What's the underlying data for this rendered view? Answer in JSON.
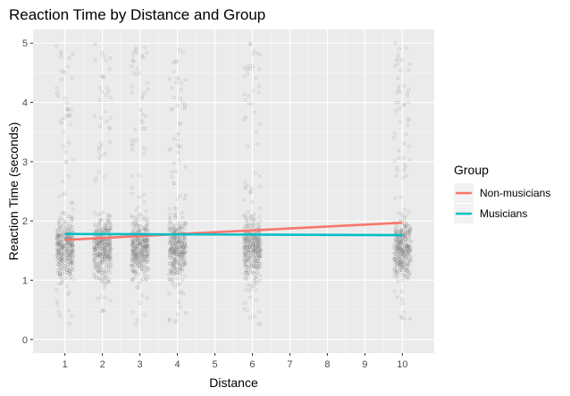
{
  "chart_data": {
    "type": "scatter",
    "title": "Reaction Time by Distance and Group",
    "xlabel": "Distance",
    "ylabel": "Reaction Time (seconds)",
    "xlim": [
      0.15,
      10.85
    ],
    "ylim": [
      -0.23,
      5.23
    ],
    "x_ticks": [
      1,
      2,
      3,
      4,
      5,
      6,
      7,
      8,
      9,
      10
    ],
    "y_ticks": [
      0,
      1,
      2,
      3,
      4,
      5
    ],
    "grid": true,
    "legend": {
      "title": "Group",
      "position": "right"
    },
    "points": {
      "description_free": true,
      "distances": [
        1,
        2,
        3,
        4,
        6,
        10
      ],
      "count_per_distance": 380,
      "jitter_width": 0.45,
      "rt_center": 1.55,
      "rt_range": [
        0.25,
        5.0
      ],
      "color": "#7f7f7f"
    },
    "series": [
      {
        "name": "Non-musicians",
        "color": "#F8766D",
        "x": [
          1,
          10
        ],
        "y": [
          1.68,
          1.97
        ]
      },
      {
        "name": "Musicians",
        "color": "#00BFC4",
        "x": [
          1,
          10
        ],
        "y": [
          1.78,
          1.76
        ]
      }
    ]
  }
}
